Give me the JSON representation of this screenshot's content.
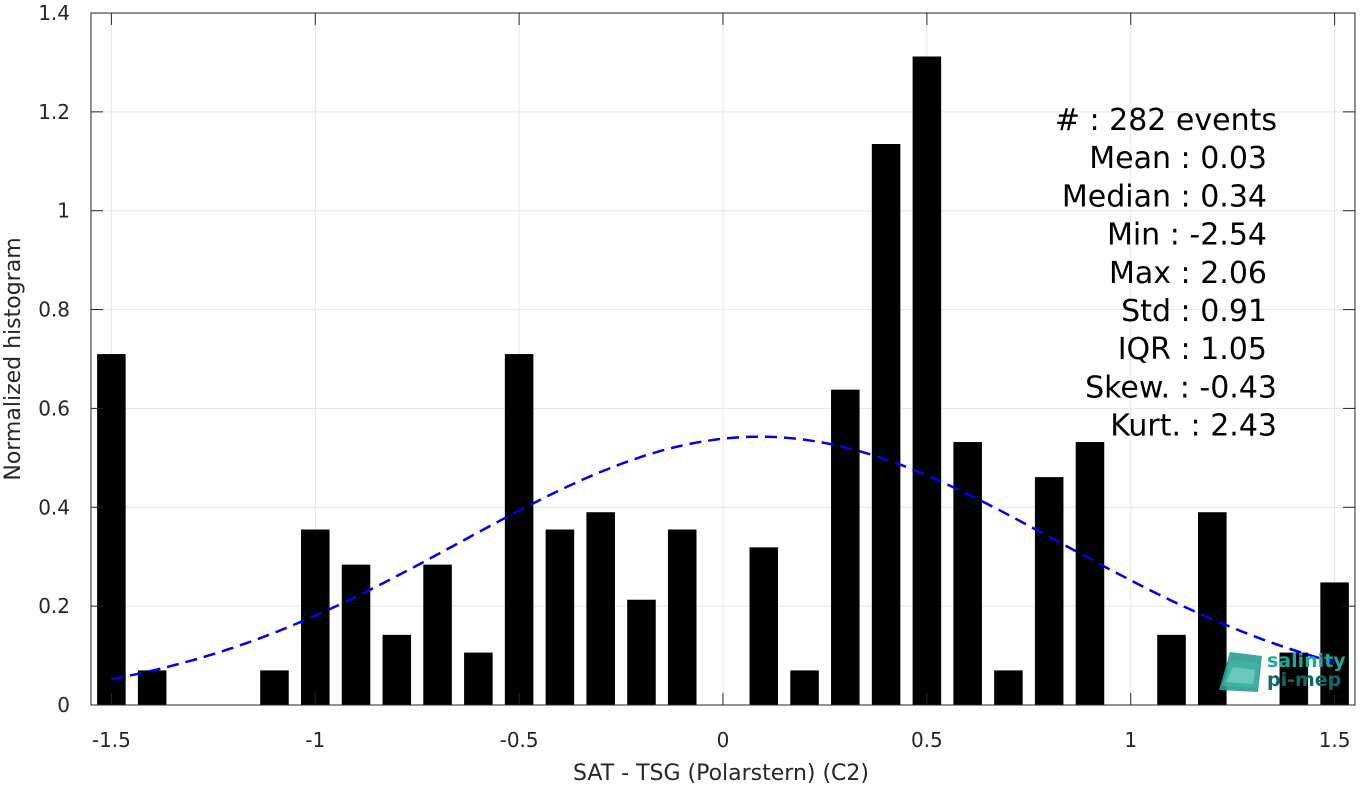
{
  "chart_data": {
    "type": "bar",
    "xlabel": "SAT - TSG (Polarstern) (C2)",
    "ylabel": "Normalized histogram",
    "xlim": [
      -1.55,
      1.55
    ],
    "ylim": [
      0,
      1.4
    ],
    "grid": true,
    "x_ticks": [
      -1.5,
      -1,
      -0.5,
      0,
      0.5,
      1,
      1.5
    ],
    "x_tick_labels": [
      "-1.5",
      "-1",
      "-0.5",
      "0",
      "0.5",
      "1",
      "1.5"
    ],
    "y_ticks": [
      0,
      0.2,
      0.4,
      0.6,
      0.8,
      1,
      1.2,
      1.4
    ],
    "y_tick_labels": [
      "0",
      "0.2",
      "0.4",
      "0.6",
      "0.8",
      "1",
      "1.2",
      "1.4"
    ],
    "bar_width": 0.07,
    "bars": [
      {
        "x": -1.5,
        "value": 0.71
      },
      {
        "x": -1.4,
        "value": 0.07
      },
      {
        "x": -1.1,
        "value": 0.07
      },
      {
        "x": -1.0,
        "value": 0.355
      },
      {
        "x": -0.9,
        "value": 0.284
      },
      {
        "x": -0.8,
        "value": 0.142
      },
      {
        "x": -0.7,
        "value": 0.284
      },
      {
        "x": -0.6,
        "value": 0.106
      },
      {
        "x": -0.5,
        "value": 0.71
      },
      {
        "x": -0.4,
        "value": 0.355
      },
      {
        "x": -0.3,
        "value": 0.39
      },
      {
        "x": -0.2,
        "value": 0.213
      },
      {
        "x": -0.1,
        "value": 0.355
      },
      {
        "x": 0.1,
        "value": 0.319
      },
      {
        "x": 0.2,
        "value": 0.07
      },
      {
        "x": 0.3,
        "value": 0.638
      },
      {
        "x": 0.4,
        "value": 1.135
      },
      {
        "x": 0.5,
        "value": 1.312
      },
      {
        "x": 0.6,
        "value": 0.532
      },
      {
        "x": 0.7,
        "value": 0.07
      },
      {
        "x": 0.8,
        "value": 0.461
      },
      {
        "x": 0.9,
        "value": 0.532
      },
      {
        "x": 1.1,
        "value": 0.142
      },
      {
        "x": 1.2,
        "value": 0.39
      },
      {
        "x": 1.4,
        "value": 0.106
      },
      {
        "x": 1.5,
        "value": 0.248
      }
    ],
    "fit_curve": {
      "style": "dashed",
      "color": "#0000ee",
      "mean": 0.09,
      "std": 0.735,
      "x_range": [
        -1.5,
        1.5
      ]
    },
    "stats": [
      "#  : 282 events",
      "Mean : 0.03",
      "Median : 0.34",
      "Min : -2.54",
      "Max : 2.06",
      "Std : 0.91",
      "IQR : 1.05",
      "Skew. : -0.43",
      "Kurt. : 2.43"
    ],
    "colors": {
      "bar": "#000000",
      "grid": "#e6e6e6",
      "axis": "#262626"
    }
  },
  "logo": {
    "line1": "salinity",
    "line2": "pi-mep",
    "color1": "#1aa99a",
    "color2": "#0f6b66"
  }
}
